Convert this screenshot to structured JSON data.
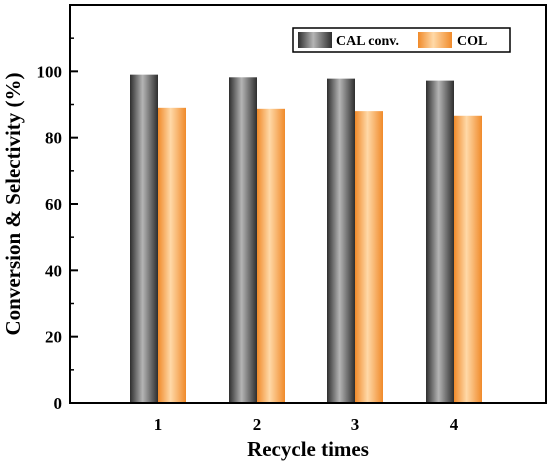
{
  "chart_data": {
    "type": "bar",
    "categories": [
      "1",
      "2",
      "3",
      "4"
    ],
    "series": [
      {
        "name": "CAL conv.",
        "values": [
          99.0,
          98.2,
          97.8,
          97.2
        ]
      },
      {
        "name": "COL",
        "values": [
          89.0,
          88.7,
          88.0,
          86.6
        ]
      }
    ],
    "xlabel": "Recycle times",
    "ylabel": "Conversion & Selectivity (%)",
    "ylim": [
      0,
      120
    ],
    "yticks": [
      "0",
      "20",
      "40",
      "60",
      "80",
      "100"
    ],
    "grid": false,
    "legend_position": "top-right"
  },
  "colors": {
    "cal_conv": "#5a5a5a",
    "col": "#f5a95a",
    "axis": "#000000"
  }
}
